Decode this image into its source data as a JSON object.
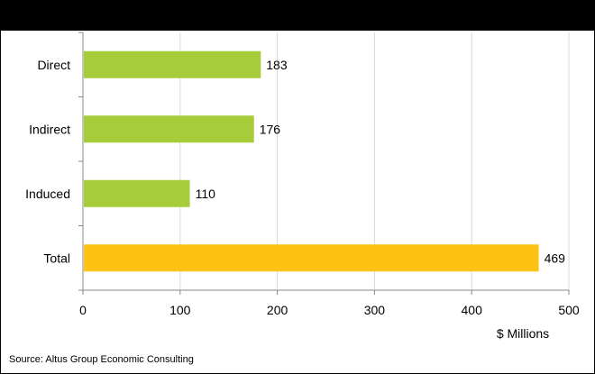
{
  "chart_data": {
    "type": "bar",
    "orientation": "horizontal",
    "title": "",
    "categories": [
      "Direct",
      "Indirect",
      "Induced",
      "Total"
    ],
    "values": [
      183,
      176,
      110,
      469
    ],
    "data_labels": [
      "183",
      "176",
      "110",
      "469"
    ],
    "bar_colors": [
      "#a6cd39",
      "#a6cd39",
      "#a6cd39",
      "#fcc314"
    ],
    "xlabel": "$ Millions",
    "ylabel": "",
    "xlim": [
      0,
      500
    ],
    "x_ticks": [
      0,
      100,
      200,
      300,
      400,
      500
    ],
    "x_tick_labels": [
      "0",
      "100",
      "200",
      "300",
      "400",
      "500"
    ],
    "grid": "vertical gridlines",
    "legend": "none"
  },
  "source": "Source: Altus Group Economic Consulting",
  "colors": {
    "title_bar": "#000000",
    "grid": "#d9d9d9",
    "axis": "#888888"
  }
}
